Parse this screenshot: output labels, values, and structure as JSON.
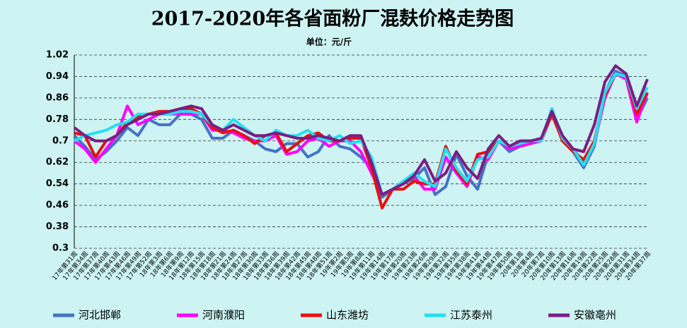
{
  "chart_data": {
    "type": "line",
    "title": "2017-2020年各省面粉厂混麸价格走势图",
    "subtitle": "单位：元/斤",
    "categories": [
      "17年第31周",
      "17年第34周",
      "17年第37周",
      "17年第40周",
      "17年第43周",
      "17年第46周",
      "17年第49周",
      "17年第52周",
      "18年第3周",
      "18年第6周",
      "18年第9周",
      "18年第12周",
      "18年第15周",
      "18年第18周",
      "18年第21周",
      "18年第24周",
      "18年第27周",
      "18年第30周",
      "18年第33周",
      "18年第36周",
      "18年第39周",
      "18年第42周",
      "18年第45周",
      "18年第48周",
      "18年第51周",
      "19年第2周",
      "19年第5周",
      "19年第8周",
      "19年第11周",
      "19年第14周",
      "19年第17周",
      "19年第20周",
      "19年第23周",
      "19年第26周",
      "19年第29周",
      "19年第32周",
      "19年第35周",
      "19年第38周",
      "19年第41周",
      "19年第44周",
      "19年第47周",
      "19年第50周",
      "20年第1周",
      "20年第4周",
      "20年第7周",
      "20年第10周",
      "20年第13周",
      "20年第16周",
      "20年第19周",
      "20年第22周",
      "20年第25周",
      "20年第28周",
      "20年第31周",
      "20年第34周",
      "20年第37周"
    ],
    "series": [
      {
        "name": "河北邯郸",
        "color": "#4472c4",
        "values": [
          0.72,
          0.68,
          0.63,
          0.66,
          0.7,
          0.75,
          0.72,
          0.78,
          0.76,
          0.76,
          0.8,
          0.8,
          0.78,
          0.71,
          0.71,
          0.74,
          0.72,
          0.7,
          0.67,
          0.66,
          0.69,
          0.69,
          0.64,
          0.66,
          0.72,
          0.68,
          0.67,
          0.64,
          0.6,
          0.49,
          0.52,
          0.54,
          0.56,
          0.6,
          0.5,
          0.53,
          0.65,
          0.57,
          0.52,
          0.65,
          0.7,
          0.66,
          0.68,
          0.69,
          0.7,
          0.82,
          0.7,
          0.66,
          0.6,
          0.68,
          0.88,
          0.96,
          0.94,
          0.78,
          0.86
        ]
      },
      {
        "name": "河南濮阳",
        "color": "#ff00ff",
        "values": [
          0.7,
          0.67,
          0.62,
          0.67,
          0.72,
          0.83,
          0.76,
          0.78,
          0.8,
          0.8,
          0.8,
          0.8,
          0.8,
          0.74,
          0.74,
          0.73,
          0.71,
          0.7,
          0.7,
          0.72,
          0.65,
          0.66,
          0.7,
          0.71,
          0.68,
          0.7,
          0.7,
          0.66,
          0.58,
          0.5,
          0.52,
          0.55,
          0.57,
          0.52,
          0.52,
          0.64,
          0.58,
          0.53,
          0.64,
          0.63,
          0.7,
          0.67,
          0.68,
          0.69,
          0.7,
          0.8,
          0.71,
          0.67,
          0.62,
          0.69,
          0.86,
          0.95,
          0.93,
          0.77,
          0.88
        ]
      },
      {
        "name": "山东潍坊",
        "color": "#e8100e",
        "values": [
          0.73,
          0.72,
          0.64,
          0.7,
          0.72,
          0.77,
          0.79,
          0.8,
          0.81,
          0.81,
          0.82,
          0.82,
          0.8,
          0.75,
          0.73,
          0.74,
          0.72,
          0.69,
          0.72,
          0.73,
          0.66,
          0.69,
          0.72,
          0.73,
          0.7,
          0.7,
          0.71,
          0.71,
          0.6,
          0.45,
          0.52,
          0.52,
          0.55,
          0.54,
          0.54,
          0.68,
          0.59,
          0.54,
          0.65,
          0.66,
          0.7,
          0.68,
          0.7,
          0.7,
          0.7,
          0.8,
          0.7,
          0.66,
          0.63,
          0.7,
          0.87,
          0.95,
          0.94,
          0.8,
          0.88
        ]
      },
      {
        "name": "江苏泰州",
        "color": "#22e0f0",
        "values": [
          0.7,
          0.72,
          0.73,
          0.74,
          0.76,
          0.77,
          0.8,
          0.8,
          0.8,
          0.8,
          0.81,
          0.81,
          0.8,
          0.76,
          0.74,
          0.78,
          0.75,
          0.72,
          0.7,
          0.74,
          0.72,
          0.72,
          0.74,
          0.71,
          0.7,
          0.72,
          0.69,
          0.7,
          0.64,
          0.5,
          0.52,
          0.55,
          0.58,
          0.55,
          0.53,
          0.67,
          0.6,
          0.55,
          0.63,
          0.64,
          0.7,
          0.68,
          0.69,
          0.7,
          0.7,
          0.82,
          0.71,
          0.67,
          0.61,
          0.69,
          0.88,
          0.95,
          0.94,
          0.82,
          0.9
        ]
      },
      {
        "name": "安徽亳州",
        "color": "#7b1e82",
        "values": [
          0.75,
          0.72,
          0.7,
          0.7,
          0.72,
          0.76,
          0.78,
          0.8,
          0.8,
          0.81,
          0.82,
          0.83,
          0.82,
          0.76,
          0.74,
          0.76,
          0.74,
          0.72,
          0.72,
          0.73,
          0.72,
          0.71,
          0.71,
          0.72,
          0.71,
          0.7,
          0.72,
          0.72,
          0.62,
          0.5,
          0.52,
          0.54,
          0.57,
          0.63,
          0.55,
          0.58,
          0.66,
          0.6,
          0.56,
          0.67,
          0.72,
          0.68,
          0.7,
          0.7,
          0.71,
          0.81,
          0.72,
          0.67,
          0.66,
          0.76,
          0.92,
          0.98,
          0.95,
          0.83,
          0.93
        ]
      }
    ],
    "ylim": [
      0.3,
      1.02
    ],
    "yticks": [
      0.3,
      0.38,
      0.46,
      0.54,
      0.62,
      0.7,
      0.78,
      0.86,
      0.94,
      1.02
    ],
    "grid": true,
    "legend": "bottom"
  }
}
